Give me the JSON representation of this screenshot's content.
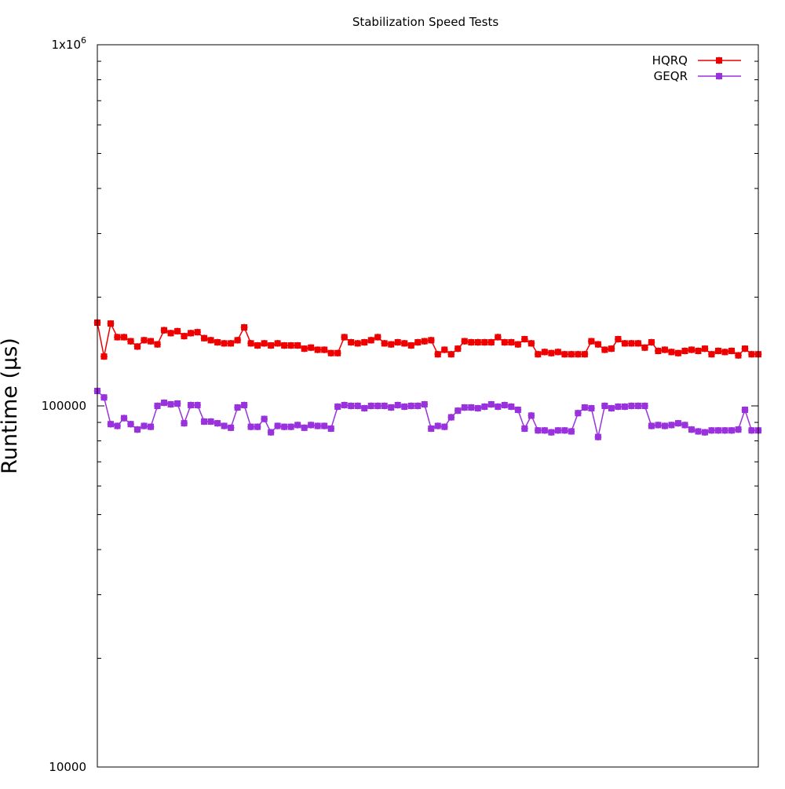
{
  "chart_data": {
    "type": "line",
    "title": "Stabilization Speed Tests",
    "xlabel": "",
    "ylabel": "Runtime (µs)",
    "y_scale": "log",
    "ylim": [
      10000,
      1000000
    ],
    "xlim": [
      1,
      100
    ],
    "x_ticks_labeled": false,
    "grid": false,
    "legend": "top-right",
    "y_tick_labels": [
      {
        "value": 10000,
        "label": "10000"
      },
      {
        "value": 100000,
        "label": "100000"
      },
      {
        "value": 1000000,
        "label": "1x10",
        "exp": "6"
      }
    ],
    "x": [
      1,
      2,
      3,
      4,
      5,
      6,
      7,
      8,
      9,
      10,
      11,
      12,
      13,
      14,
      15,
      16,
      17,
      18,
      19,
      20,
      21,
      22,
      23,
      24,
      25,
      26,
      27,
      28,
      29,
      30,
      31,
      32,
      33,
      34,
      35,
      36,
      37,
      38,
      39,
      40,
      41,
      42,
      43,
      44,
      45,
      46,
      47,
      48,
      49,
      50,
      51,
      52,
      53,
      54,
      55,
      56,
      57,
      58,
      59,
      60,
      61,
      62,
      63,
      64,
      65,
      66,
      67,
      68,
      69,
      70,
      71,
      72,
      73,
      74,
      75,
      76,
      77,
      78,
      79,
      80,
      81,
      82,
      83,
      84,
      85,
      86,
      87,
      88,
      89,
      90,
      91,
      92,
      93,
      94,
      95,
      96,
      97,
      98,
      99,
      100
    ],
    "series": [
      {
        "name": "HQRQ",
        "color": "#ee0000",
        "values": [
          170000,
          137000,
          169000,
          155000,
          155000,
          151000,
          146000,
          152000,
          151000,
          148000,
          162000,
          159000,
          161000,
          156000,
          159000,
          160000,
          154000,
          152000,
          150000,
          149000,
          149000,
          152000,
          165000,
          149000,
          147000,
          149000,
          147000,
          149000,
          147000,
          147000,
          147000,
          144000,
          145000,
          143000,
          143000,
          140000,
          140000,
          155000,
          150000,
          149000,
          150000,
          152000,
          155000,
          149000,
          148000,
          150000,
          149000,
          147000,
          150000,
          151000,
          152000,
          139000,
          143000,
          139000,
          144000,
          151000,
          150000,
          150000,
          150000,
          150000,
          155000,
          150000,
          150000,
          148000,
          153000,
          149000,
          139000,
          141000,
          140000,
          141000,
          139000,
          139000,
          139000,
          139000,
          151000,
          148000,
          143000,
          144000,
          153000,
          149000,
          149000,
          149000,
          145000,
          150000,
          142000,
          143000,
          141000,
          140000,
          142000,
          143000,
          142000,
          144000,
          139000,
          142000,
          141000,
          142000,
          138000,
          144000,
          139000,
          139000
        ]
      },
      {
        "name": "GEQR",
        "color": "#9932dd",
        "values": [
          110000,
          105500,
          89000,
          88000,
          92500,
          89000,
          86000,
          88000,
          87500,
          100000,
          102000,
          101000,
          101500,
          89500,
          100500,
          100500,
          90500,
          90500,
          89500,
          88000,
          87000,
          99000,
          100500,
          87500,
          87500,
          92000,
          84500,
          88000,
          87500,
          87500,
          88500,
          87000,
          88500,
          88000,
          88000,
          86500,
          99500,
          100500,
          100000,
          100000,
          98500,
          100000,
          100000,
          100000,
          99000,
          100500,
          99500,
          100000,
          100000,
          101000,
          86500,
          88000,
          87500,
          93000,
          97000,
          99000,
          99000,
          98500,
          99500,
          101000,
          99500,
          100500,
          99500,
          97500,
          86500,
          94000,
          85500,
          85500,
          84500,
          85500,
          85500,
          85000,
          95500,
          99000,
          98500,
          82000,
          100000,
          98500,
          99500,
          99500,
          100000,
          100000,
          100000,
          88000,
          88500,
          88000,
          88500,
          89500,
          88500,
          86000,
          85000,
          84500,
          85500,
          85500,
          85500,
          85500,
          86000,
          97500,
          85500,
          85500
        ]
      }
    ]
  }
}
